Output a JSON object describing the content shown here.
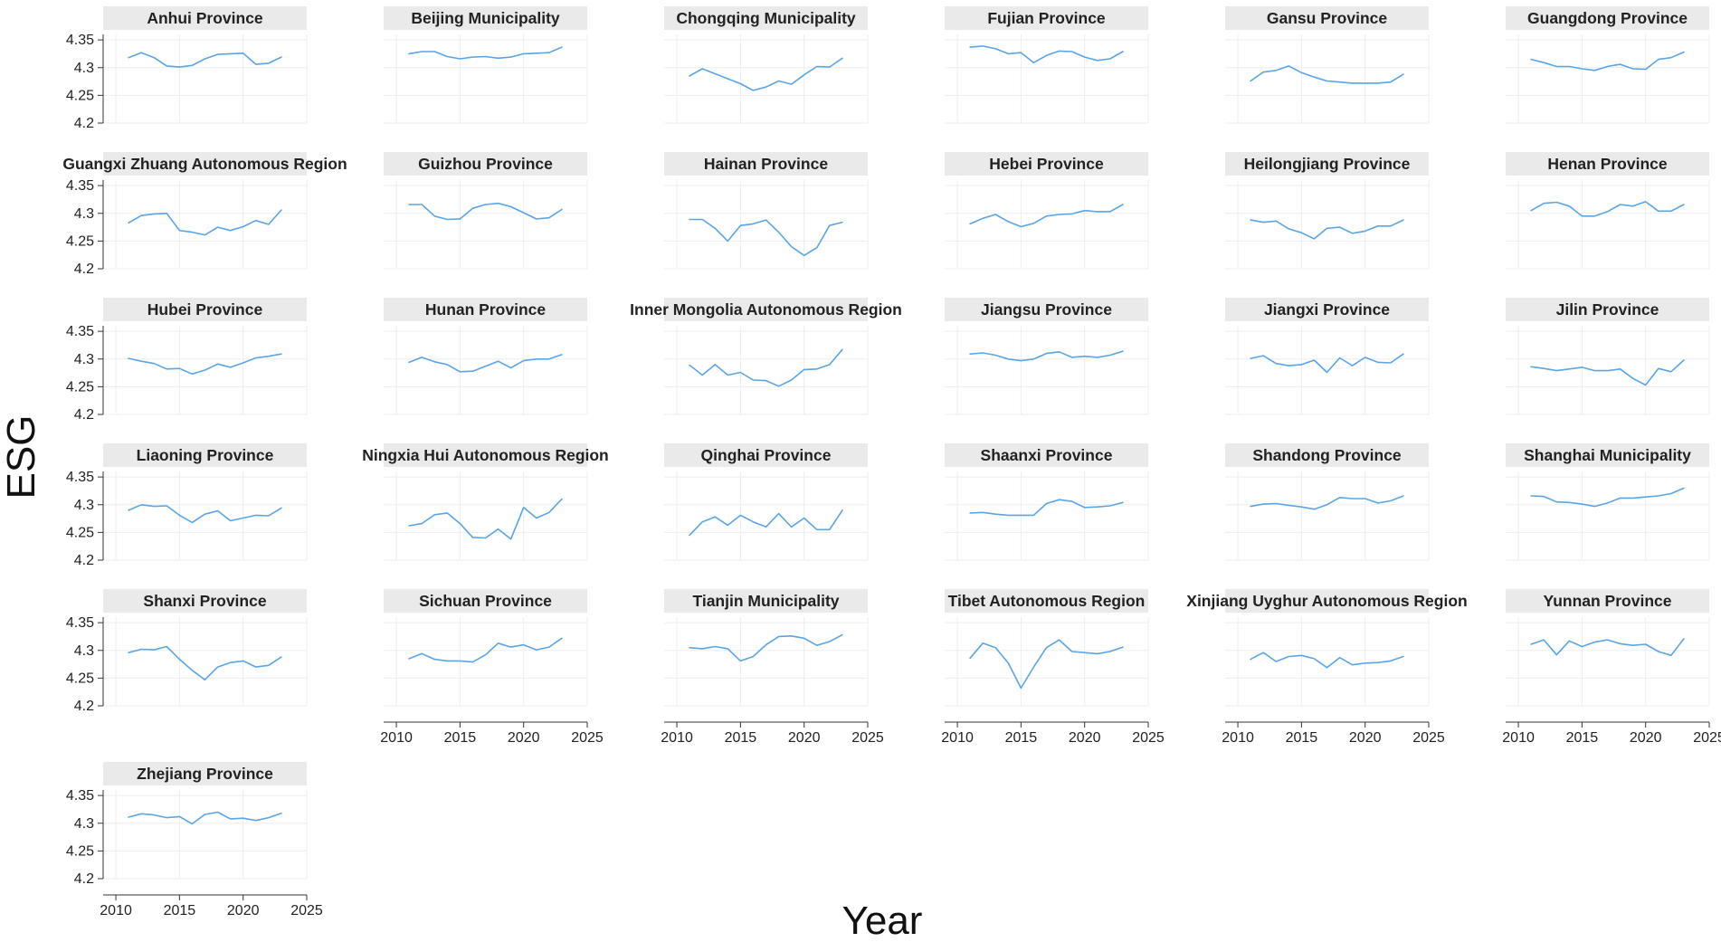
{
  "chart_data": {
    "type": "line",
    "layout": "small-multiples",
    "xlabel": "Year",
    "ylabel": "ESG",
    "xlim": [
      2009,
      2025
    ],
    "ylim": [
      4.2,
      4.36
    ],
    "x_ticks": [
      "2010",
      "2015",
      "2020",
      "2025"
    ],
    "y_ticks": [
      "4.2",
      "4.25",
      "4.3",
      "4.35"
    ],
    "grid": true,
    "line_color": "#5aa4e8",
    "x": [
      2011,
      2012,
      2013,
      2014,
      2015,
      2016,
      2017,
      2018,
      2019,
      2020,
      2021,
      2022,
      2023
    ],
    "panels": [
      {
        "name": "Anhui Province",
        "values": [
          4.318,
          4.327,
          4.318,
          4.303,
          4.301,
          4.304,
          4.316,
          4.324,
          4.325,
          4.326,
          4.306,
          4.308,
          4.319
        ]
      },
      {
        "name": "Beijing Municipality",
        "values": [
          4.325,
          4.329,
          4.329,
          4.32,
          4.316,
          4.319,
          4.32,
          4.317,
          4.319,
          4.325,
          4.326,
          4.327,
          4.337
        ]
      },
      {
        "name": "Chongqing Municipality",
        "values": [
          4.285,
          4.298,
          4.289,
          4.28,
          4.271,
          4.259,
          4.265,
          4.276,
          4.27,
          4.287,
          4.302,
          4.301,
          4.317
        ]
      },
      {
        "name": "Fujian Province",
        "values": [
          4.337,
          4.339,
          4.334,
          4.325,
          4.327,
          4.309,
          4.322,
          4.33,
          4.329,
          4.319,
          4.313,
          4.316,
          4.329
        ]
      },
      {
        "name": "Gansu Province",
        "values": [
          4.276,
          4.292,
          4.295,
          4.303,
          4.291,
          4.283,
          4.276,
          4.274,
          4.272,
          4.272,
          4.272,
          4.274,
          4.288
        ]
      },
      {
        "name": "Guangdong Province",
        "values": [
          4.315,
          4.309,
          4.302,
          4.302,
          4.298,
          4.295,
          4.302,
          4.306,
          4.298,
          4.297,
          4.315,
          4.318,
          4.328
        ]
      },
      {
        "name": "Guangxi Zhuang Autonomous Region",
        "values": [
          4.283,
          4.296,
          4.299,
          4.3,
          4.269,
          4.266,
          4.261,
          4.275,
          4.269,
          4.276,
          4.287,
          4.28,
          4.306
        ]
      },
      {
        "name": "Guizhou Province",
        "values": [
          4.316,
          4.316,
          4.295,
          4.289,
          4.29,
          4.309,
          4.316,
          4.318,
          4.312,
          4.301,
          4.29,
          4.292,
          4.307
        ]
      },
      {
        "name": "Hainan Province",
        "values": [
          4.289,
          4.289,
          4.273,
          4.25,
          4.278,
          4.281,
          4.288,
          4.266,
          4.24,
          4.224,
          4.238,
          4.278,
          4.284
        ]
      },
      {
        "name": "Hebei Province",
        "values": [
          4.281,
          4.291,
          4.298,
          4.285,
          4.276,
          4.282,
          4.295,
          4.298,
          4.299,
          4.305,
          4.303,
          4.303,
          4.316
        ]
      },
      {
        "name": "Heilongjiang Province",
        "values": [
          4.288,
          4.284,
          4.286,
          4.272,
          4.265,
          4.254,
          4.273,
          4.275,
          4.264,
          4.268,
          4.277,
          4.277,
          4.288
        ]
      },
      {
        "name": "Henan Province",
        "values": [
          4.305,
          4.318,
          4.32,
          4.313,
          4.295,
          4.295,
          4.303,
          4.316,
          4.313,
          4.321,
          4.304,
          4.304,
          4.316
        ]
      },
      {
        "name": "Hubei Province",
        "values": [
          4.301,
          4.296,
          4.292,
          4.282,
          4.283,
          4.273,
          4.28,
          4.291,
          4.285,
          4.293,
          4.302,
          4.305,
          4.309
        ]
      },
      {
        "name": "Hunan Province",
        "values": [
          4.294,
          4.303,
          4.295,
          4.29,
          4.277,
          4.278,
          4.287,
          4.296,
          4.284,
          4.297,
          4.3,
          4.3,
          4.308
        ]
      },
      {
        "name": "Inner Mongolia Autonomous Region",
        "values": [
          4.289,
          4.271,
          4.29,
          4.271,
          4.276,
          4.262,
          4.261,
          4.251,
          4.262,
          4.281,
          4.282,
          4.29,
          4.317
        ]
      },
      {
        "name": "Jiangsu Province",
        "values": [
          4.309,
          4.311,
          4.307,
          4.3,
          4.297,
          4.3,
          4.31,
          4.313,
          4.303,
          4.305,
          4.303,
          4.307,
          4.314
        ]
      },
      {
        "name": "Jiangxi Province",
        "values": [
          4.301,
          4.306,
          4.292,
          4.288,
          4.29,
          4.298,
          4.276,
          4.302,
          4.288,
          4.303,
          4.294,
          4.293,
          4.309
        ]
      },
      {
        "name": "Jilin Province",
        "values": [
          4.286,
          4.283,
          4.279,
          4.282,
          4.285,
          4.279,
          4.279,
          4.282,
          4.265,
          4.253,
          4.283,
          4.277,
          4.298
        ]
      },
      {
        "name": "Liaoning Province",
        "values": [
          4.29,
          4.3,
          4.297,
          4.298,
          4.281,
          4.268,
          4.283,
          4.289,
          4.271,
          4.276,
          4.281,
          4.28,
          4.294
        ]
      },
      {
        "name": "Ningxia Hui Autonomous Region",
        "values": [
          4.262,
          4.266,
          4.282,
          4.285,
          4.266,
          4.241,
          4.24,
          4.256,
          4.238,
          4.295,
          4.276,
          4.286,
          4.31
        ]
      },
      {
        "name": "Qinghai Province",
        "values": [
          4.245,
          4.269,
          4.278,
          4.263,
          4.281,
          4.269,
          4.26,
          4.284,
          4.26,
          4.276,
          4.255,
          4.255,
          4.29
        ]
      },
      {
        "name": "Shaanxi Province",
        "values": [
          4.285,
          4.286,
          4.283,
          4.281,
          4.281,
          4.281,
          4.302,
          4.309,
          4.306,
          4.295,
          4.296,
          4.298,
          4.304
        ]
      },
      {
        "name": "Shandong Province",
        "values": [
          4.297,
          4.301,
          4.302,
          4.299,
          4.296,
          4.292,
          4.3,
          4.313,
          4.311,
          4.311,
          4.303,
          4.307,
          4.316
        ]
      },
      {
        "name": "Shanghai Municipality",
        "values": [
          4.316,
          4.315,
          4.305,
          4.304,
          4.301,
          4.297,
          4.303,
          4.312,
          4.312,
          4.314,
          4.316,
          4.32,
          4.33
        ]
      },
      {
        "name": "Shanxi Province",
        "values": [
          4.296,
          4.302,
          4.301,
          4.307,
          4.284,
          4.264,
          4.247,
          4.27,
          4.278,
          4.281,
          4.27,
          4.273,
          4.288
        ]
      },
      {
        "name": "Sichuan Province",
        "values": [
          4.285,
          4.294,
          4.284,
          4.281,
          4.281,
          4.279,
          4.292,
          4.313,
          4.306,
          4.31,
          4.301,
          4.306,
          4.322
        ]
      },
      {
        "name": "Tianjin Municipality",
        "values": [
          4.305,
          4.303,
          4.307,
          4.303,
          4.281,
          4.289,
          4.31,
          4.325,
          4.326,
          4.322,
          4.309,
          4.316,
          4.328
        ]
      },
      {
        "name": "Tibet Autonomous Region",
        "values": [
          4.286,
          4.313,
          4.305,
          4.277,
          4.232,
          4.27,
          4.305,
          4.319,
          4.298,
          4.296,
          4.294,
          4.298,
          4.306
        ]
      },
      {
        "name": "Xinjiang Uyghur Autonomous Region",
        "values": [
          4.284,
          4.296,
          4.28,
          4.289,
          4.291,
          4.285,
          4.269,
          4.287,
          4.274,
          4.277,
          4.278,
          4.281,
          4.289
        ]
      },
      {
        "name": "Yunnan Province",
        "values": [
          4.311,
          4.319,
          4.292,
          4.317,
          4.307,
          4.315,
          4.319,
          4.312,
          4.309,
          4.311,
          4.298,
          4.291,
          4.321
        ]
      },
      {
        "name": "Zhejiang Province",
        "values": [
          4.311,
          4.317,
          4.315,
          4.31,
          4.312,
          4.299,
          4.316,
          4.32,
          4.308,
          4.309,
          4.305,
          4.31,
          4.318
        ]
      }
    ]
  }
}
